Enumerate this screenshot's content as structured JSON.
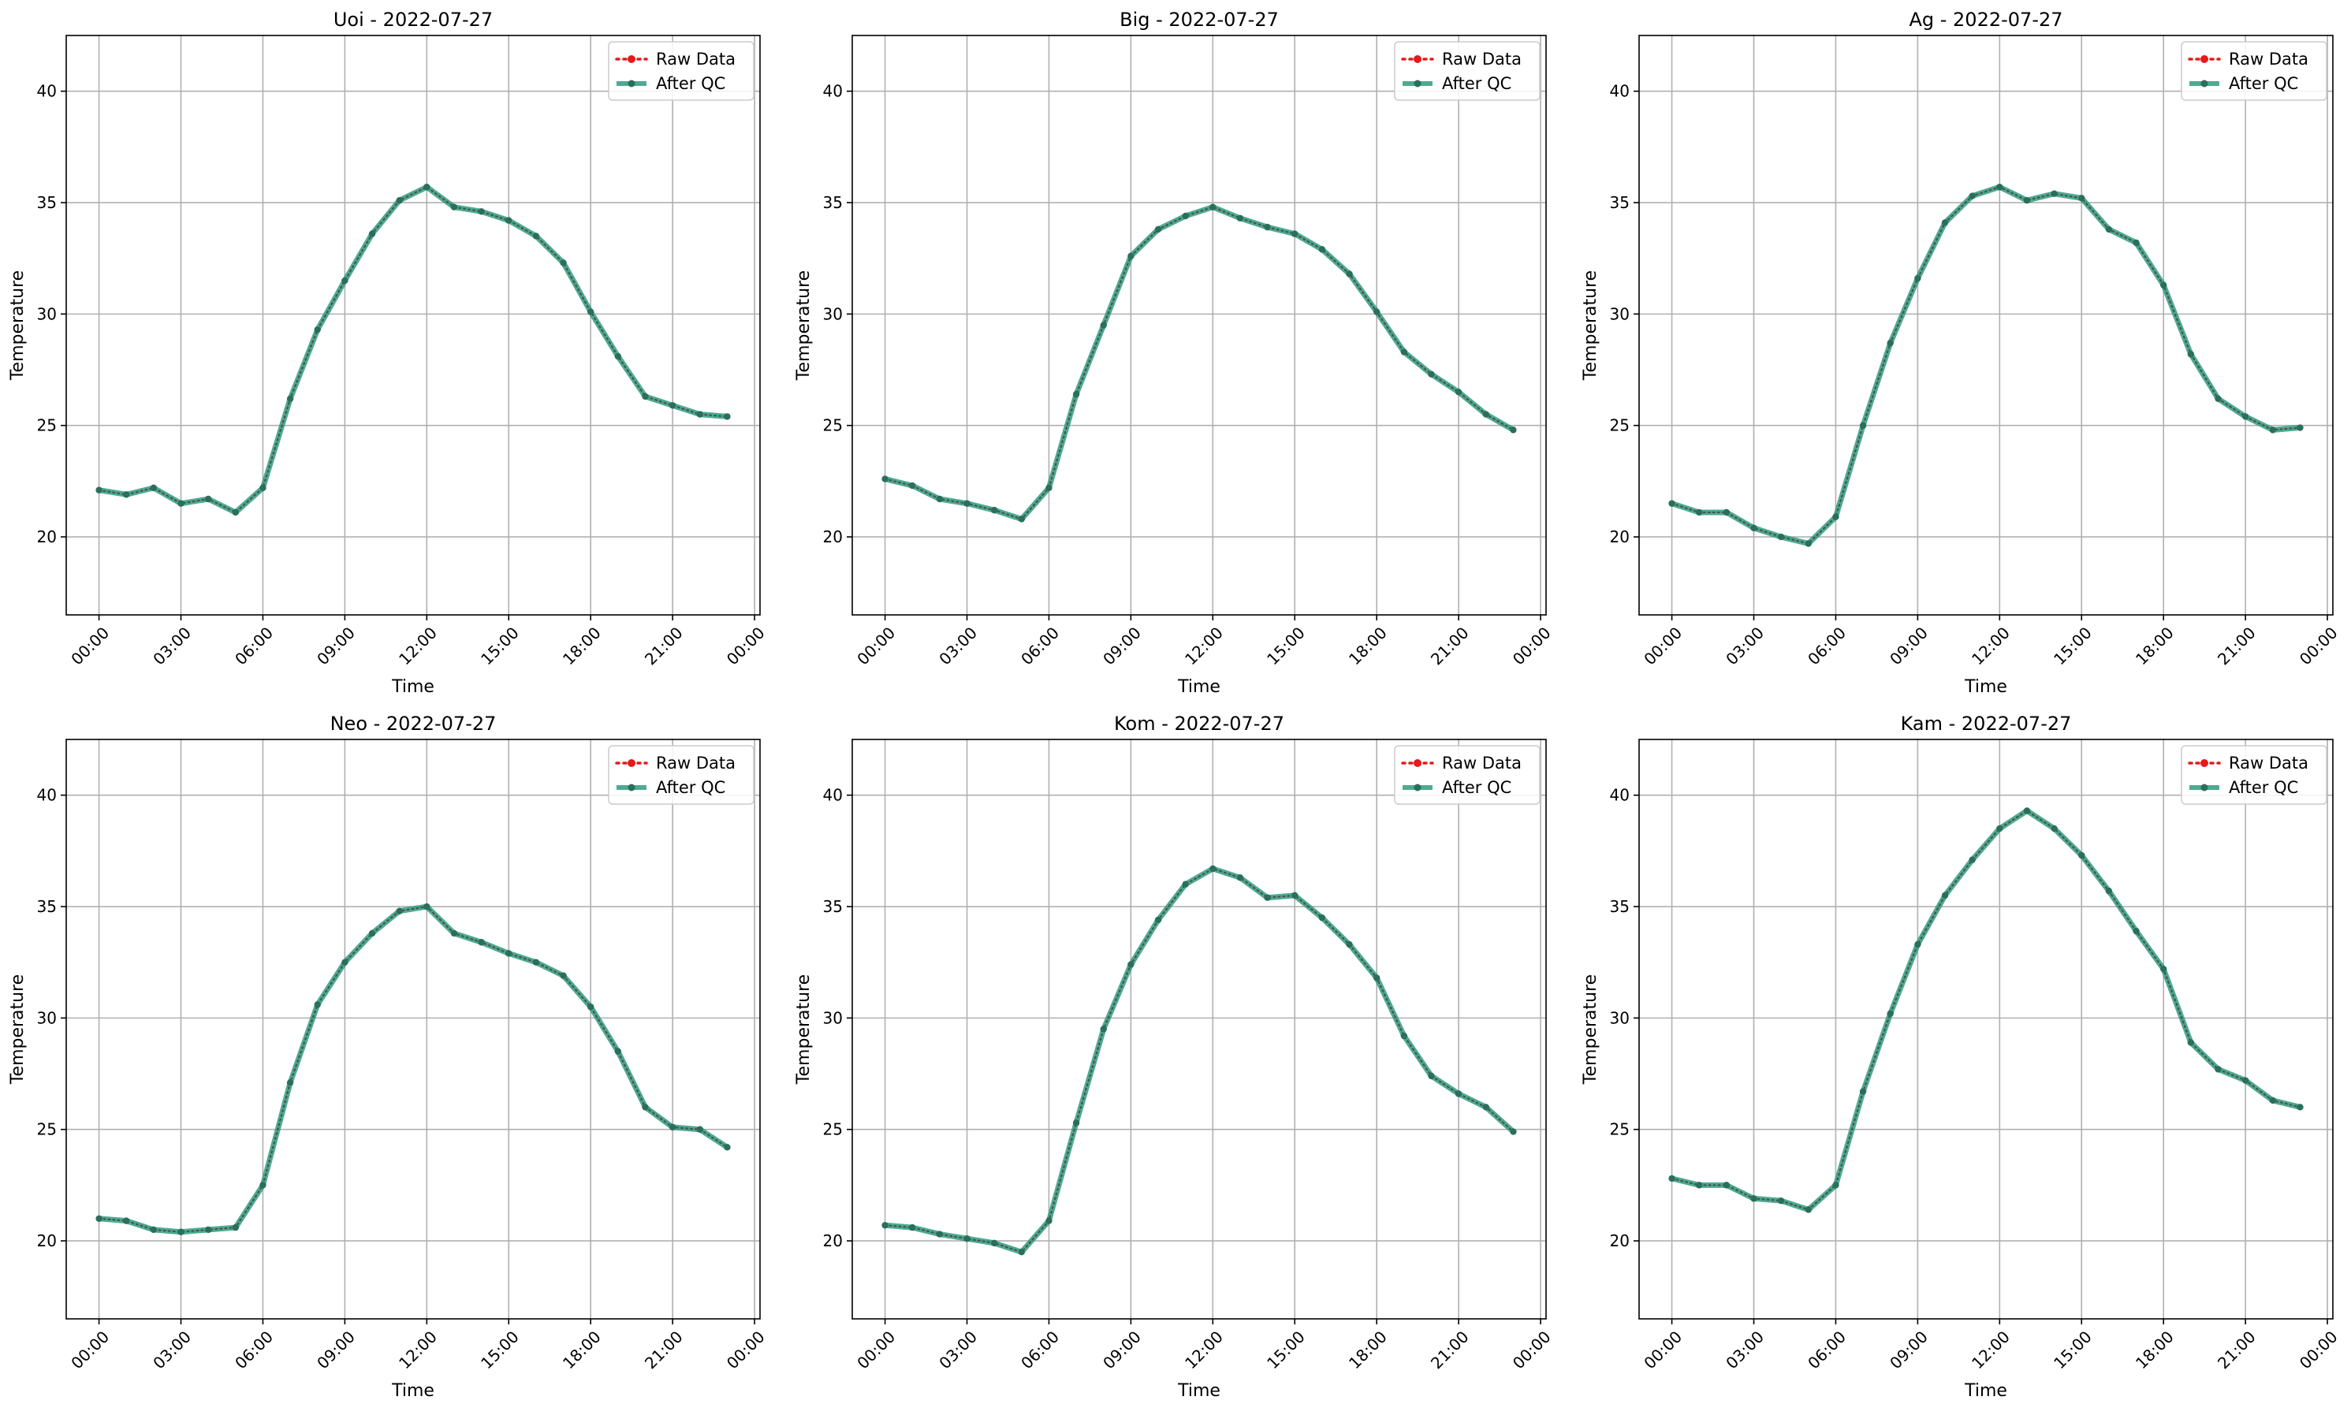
{
  "chart_data": [
    {
      "type": "line",
      "title": "Uoi - 2022-07-27",
      "xlabel": "Time",
      "ylabel": "Temperature",
      "ylim": [
        16.5,
        42.5
      ],
      "yticks": [
        20,
        25,
        30,
        35,
        40
      ],
      "xlim": [
        -1.2,
        24.2
      ],
      "xticks": [
        0,
        3,
        6,
        9,
        12,
        15,
        18,
        21,
        24
      ],
      "xtick_labels": [
        "00:00",
        "03:00",
        "06:00",
        "09:00",
        "12:00",
        "15:00",
        "18:00",
        "21:00",
        "00:00"
      ],
      "grid": true,
      "legend": "top-right",
      "x": [
        0,
        1,
        2,
        3,
        4,
        5,
        6,
        7,
        8,
        9,
        10,
        11,
        12,
        13,
        14,
        15,
        16,
        17,
        18,
        19,
        20,
        21,
        22,
        23
      ],
      "series": [
        {
          "name": "Raw Data",
          "values": [
            22.1,
            21.9,
            22.2,
            21.5,
            21.7,
            21.1,
            22.2,
            26.2,
            29.3,
            31.5,
            33.6,
            35.1,
            35.7,
            34.8,
            34.6,
            34.2,
            33.5,
            32.3,
            30.1,
            28.1,
            26.3,
            25.9,
            25.5,
            25.4
          ]
        },
        {
          "name": "After QC",
          "values": [
            22.1,
            21.9,
            22.2,
            21.5,
            21.7,
            21.1,
            22.2,
            26.2,
            29.3,
            31.5,
            33.6,
            35.1,
            35.7,
            34.8,
            34.6,
            34.2,
            33.5,
            32.3,
            30.1,
            28.1,
            26.3,
            25.9,
            25.5,
            25.4
          ]
        }
      ]
    },
    {
      "type": "line",
      "title": "Big - 2022-07-27",
      "xlabel": "Time",
      "ylabel": "Temperature",
      "ylim": [
        16.5,
        42.5
      ],
      "yticks": [
        20,
        25,
        30,
        35,
        40
      ],
      "xlim": [
        -1.2,
        24.2
      ],
      "xticks": [
        0,
        3,
        6,
        9,
        12,
        15,
        18,
        21,
        24
      ],
      "xtick_labels": [
        "00:00",
        "03:00",
        "06:00",
        "09:00",
        "12:00",
        "15:00",
        "18:00",
        "21:00",
        "00:00"
      ],
      "grid": true,
      "legend": "top-right",
      "x": [
        0,
        1,
        2,
        3,
        4,
        5,
        6,
        7,
        8,
        9,
        10,
        11,
        12,
        13,
        14,
        15,
        16,
        17,
        18,
        19,
        20,
        21,
        22,
        23
      ],
      "series": [
        {
          "name": "Raw Data",
          "values": [
            22.6,
            22.3,
            21.7,
            21.5,
            21.2,
            20.8,
            22.2,
            26.4,
            29.5,
            32.6,
            33.8,
            34.4,
            34.8,
            34.3,
            33.9,
            33.6,
            32.9,
            31.8,
            30.1,
            28.3,
            27.3,
            26.5,
            25.5,
            24.8
          ]
        },
        {
          "name": "After QC",
          "values": [
            22.6,
            22.3,
            21.7,
            21.5,
            21.2,
            20.8,
            22.2,
            26.4,
            29.5,
            32.6,
            33.8,
            34.4,
            34.8,
            34.3,
            33.9,
            33.6,
            32.9,
            31.8,
            30.1,
            28.3,
            27.3,
            26.5,
            25.5,
            24.8
          ]
        }
      ]
    },
    {
      "type": "line",
      "title": "Ag - 2022-07-27",
      "xlabel": "Time",
      "ylabel": "Temperature",
      "ylim": [
        16.5,
        42.5
      ],
      "yticks": [
        20,
        25,
        30,
        35,
        40
      ],
      "xlim": [
        -1.2,
        24.2
      ],
      "xticks": [
        0,
        3,
        6,
        9,
        12,
        15,
        18,
        21,
        24
      ],
      "xtick_labels": [
        "00:00",
        "03:00",
        "06:00",
        "09:00",
        "12:00",
        "15:00",
        "18:00",
        "21:00",
        "00:00"
      ],
      "grid": true,
      "legend": "top-right",
      "x": [
        0,
        1,
        2,
        3,
        4,
        5,
        6,
        7,
        8,
        9,
        10,
        11,
        12,
        13,
        14,
        15,
        16,
        17,
        18,
        19,
        20,
        21,
        22,
        23
      ],
      "series": [
        {
          "name": "Raw Data",
          "values": [
            21.5,
            21.1,
            21.1,
            20.4,
            20.0,
            19.7,
            20.9,
            25.0,
            28.7,
            31.6,
            34.1,
            35.3,
            35.7,
            35.1,
            35.4,
            35.2,
            33.8,
            33.2,
            31.3,
            28.2,
            26.2,
            25.4,
            24.8,
            24.9
          ]
        },
        {
          "name": "After QC",
          "values": [
            21.5,
            21.1,
            21.1,
            20.4,
            20.0,
            19.7,
            20.9,
            25.0,
            28.7,
            31.6,
            34.1,
            35.3,
            35.7,
            35.1,
            35.4,
            35.2,
            33.8,
            33.2,
            31.3,
            28.2,
            26.2,
            25.4,
            24.8,
            24.9
          ]
        }
      ]
    },
    {
      "type": "line",
      "title": "Neo - 2022-07-27",
      "xlabel": "Time",
      "ylabel": "Temperature",
      "ylim": [
        16.5,
        42.5
      ],
      "yticks": [
        20,
        25,
        30,
        35,
        40
      ],
      "xlim": [
        -1.2,
        24.2
      ],
      "xticks": [
        0,
        3,
        6,
        9,
        12,
        15,
        18,
        21,
        24
      ],
      "xtick_labels": [
        "00:00",
        "03:00",
        "06:00",
        "09:00",
        "12:00",
        "15:00",
        "18:00",
        "21:00",
        "00:00"
      ],
      "grid": true,
      "legend": "top-right",
      "x": [
        0,
        1,
        2,
        3,
        4,
        5,
        6,
        7,
        8,
        9,
        10,
        11,
        12,
        13,
        14,
        15,
        16,
        17,
        18,
        19,
        20,
        21,
        22,
        23
      ],
      "series": [
        {
          "name": "Raw Data",
          "values": [
            21.0,
            20.9,
            20.5,
            20.4,
            20.5,
            20.6,
            22.5,
            27.1,
            30.6,
            32.5,
            33.8,
            34.8,
            35.0,
            33.8,
            33.4,
            32.9,
            32.5,
            31.9,
            30.5,
            28.5,
            26.0,
            25.1,
            25.0,
            24.2
          ]
        },
        {
          "name": "After QC",
          "values": [
            21.0,
            20.9,
            20.5,
            20.4,
            20.5,
            20.6,
            22.5,
            27.1,
            30.6,
            32.5,
            33.8,
            34.8,
            35.0,
            33.8,
            33.4,
            32.9,
            32.5,
            31.9,
            30.5,
            28.5,
            26.0,
            25.1,
            25.0,
            24.2
          ]
        }
      ]
    },
    {
      "type": "line",
      "title": "Kom - 2022-07-27",
      "xlabel": "Time",
      "ylabel": "Temperature",
      "ylim": [
        16.5,
        42.5
      ],
      "yticks": [
        20,
        25,
        30,
        35,
        40
      ],
      "xlim": [
        -1.2,
        24.2
      ],
      "xticks": [
        0,
        3,
        6,
        9,
        12,
        15,
        18,
        21,
        24
      ],
      "xtick_labels": [
        "00:00",
        "03:00",
        "06:00",
        "09:00",
        "12:00",
        "15:00",
        "18:00",
        "21:00",
        "00:00"
      ],
      "grid": true,
      "legend": "top-right",
      "x": [
        0,
        1,
        2,
        3,
        4,
        5,
        6,
        7,
        8,
        9,
        10,
        11,
        12,
        13,
        14,
        15,
        16,
        17,
        18,
        19,
        20,
        21,
        22,
        23
      ],
      "series": [
        {
          "name": "Raw Data",
          "values": [
            20.7,
            20.6,
            20.3,
            20.1,
            19.9,
            19.5,
            20.9,
            25.3,
            29.5,
            32.4,
            34.4,
            36.0,
            36.7,
            36.3,
            35.4,
            35.5,
            34.5,
            33.3,
            31.8,
            29.2,
            27.4,
            26.6,
            26.0,
            24.9
          ]
        },
        {
          "name": "After QC",
          "values": [
            20.7,
            20.6,
            20.3,
            20.1,
            19.9,
            19.5,
            20.9,
            25.3,
            29.5,
            32.4,
            34.4,
            36.0,
            36.7,
            36.3,
            35.4,
            35.5,
            34.5,
            33.3,
            31.8,
            29.2,
            27.4,
            26.6,
            26.0,
            24.9
          ]
        }
      ]
    },
    {
      "type": "line",
      "title": "Kam - 2022-07-27",
      "xlabel": "Time",
      "ylabel": "Temperature",
      "ylim": [
        16.5,
        42.5
      ],
      "yticks": [
        20,
        25,
        30,
        35,
        40
      ],
      "xlim": [
        -1.2,
        24.2
      ],
      "xticks": [
        0,
        3,
        6,
        9,
        12,
        15,
        18,
        21,
        24
      ],
      "xtick_labels": [
        "00:00",
        "03:00",
        "06:00",
        "09:00",
        "12:00",
        "15:00",
        "18:00",
        "21:00",
        "00:00"
      ],
      "grid": true,
      "legend": "top-right",
      "x": [
        0,
        1,
        2,
        3,
        4,
        5,
        6,
        7,
        8,
        9,
        10,
        11,
        12,
        13,
        14,
        15,
        16,
        17,
        18,
        19,
        20,
        21,
        22,
        23
      ],
      "series": [
        {
          "name": "Raw Data",
          "values": [
            22.8,
            22.5,
            22.5,
            21.9,
            21.8,
            21.4,
            22.5,
            26.7,
            30.2,
            33.3,
            35.5,
            37.1,
            38.5,
            39.3,
            38.5,
            37.3,
            35.7,
            33.9,
            32.2,
            28.9,
            27.7,
            27.2,
            26.3,
            26.0
          ]
        },
        {
          "name": "After QC",
          "values": [
            22.8,
            22.5,
            22.5,
            21.9,
            21.8,
            21.4,
            22.5,
            26.7,
            30.2,
            33.3,
            35.5,
            37.1,
            38.5,
            39.3,
            38.5,
            37.3,
            35.7,
            33.9,
            32.2,
            28.9,
            27.7,
            27.2,
            26.3,
            26.0
          ]
        }
      ]
    }
  ],
  "colors": {
    "raw_data": "#e41a1c",
    "after_qc": "#2e9c7c",
    "points": "#2a6f5c",
    "grid": "#b0b0b0"
  }
}
